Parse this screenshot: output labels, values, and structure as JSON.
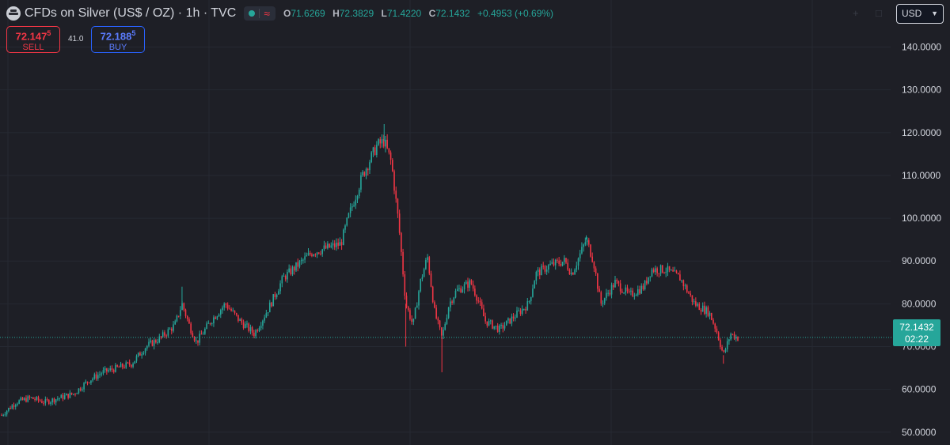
{
  "header": {
    "symbol": "CFDs on Silver (US$ / OZ) · 1h · TVC",
    "ohlc": {
      "open_label": "O",
      "open": "71.6269",
      "high_label": "H",
      "high": "72.3829",
      "low_label": "L",
      "low": "71.4220",
      "close_label": "C",
      "close": "72.1432",
      "change": "+0.4953 (+0.69%)"
    },
    "icons": [
      "silver-logo-icon",
      "market-open-dot-icon",
      "wave-icon"
    ]
  },
  "trade": {
    "sell_price_main": "72.147",
    "sell_price_sup": "5",
    "sell_label": "SELL",
    "spread": "41.0",
    "buy_price_main": "72.188",
    "buy_price_sup": "5",
    "buy_label": "BUY"
  },
  "currency": {
    "value": "USD"
  },
  "last_price": {
    "value": "72.1432",
    "countdown": "02:22"
  },
  "colors": {
    "background": "#1e1f26",
    "up": "#26a69a",
    "down": "#f23645",
    "buy": "#2962ff",
    "grid": "#262932",
    "text": "#d1d4dc"
  },
  "chart_data": {
    "type": "candlestick",
    "timeframe": "1h",
    "ylim": [
      47,
      151
    ],
    "y_ticks": [
      "50.0000",
      "60.0000",
      "70.0000",
      "80.0000",
      "90.0000",
      "100.0000",
      "110.0000",
      "120.0000",
      "130.0000",
      "140.0000"
    ],
    "y_tick_values": [
      50,
      60,
      70,
      80,
      90,
      100,
      110,
      120,
      130,
      140
    ],
    "last_price": 72.1432,
    "price_path": [
      [
        0,
        54
      ],
      [
        2,
        57
      ],
      [
        4,
        58
      ],
      [
        6,
        57
      ],
      [
        8,
        58
      ],
      [
        10,
        59
      ],
      [
        12,
        62
      ],
      [
        14,
        64
      ],
      [
        16,
        65
      ],
      [
        18,
        66
      ],
      [
        20,
        70
      ],
      [
        22,
        72
      ],
      [
        24,
        75
      ],
      [
        25,
        80
      ],
      [
        26,
        75
      ],
      [
        27,
        71
      ],
      [
        29,
        76
      ],
      [
        31,
        80
      ],
      [
        33,
        76
      ],
      [
        35,
        73
      ],
      [
        37,
        79
      ],
      [
        39,
        86
      ],
      [
        41,
        89
      ],
      [
        43,
        92
      ],
      [
        45,
        93
      ],
      [
        47,
        94
      ],
      [
        48,
        100
      ],
      [
        50,
        110
      ],
      [
        52,
        117
      ],
      [
        53,
        118
      ],
      [
        54,
        113
      ],
      [
        55,
        99
      ],
      [
        56,
        80
      ],
      [
        57,
        75
      ],
      [
        58,
        85
      ],
      [
        59,
        91
      ],
      [
        60,
        78
      ],
      [
        61,
        72
      ],
      [
        62,
        80
      ],
      [
        63,
        83
      ],
      [
        65,
        85
      ],
      [
        66,
        81
      ],
      [
        67,
        76
      ],
      [
        69,
        74
      ],
      [
        71,
        77
      ],
      [
        73,
        80
      ],
      [
        74,
        87
      ],
      [
        76,
        89
      ],
      [
        78,
        90
      ],
      [
        79,
        87
      ],
      [
        81,
        95
      ],
      [
        82,
        90
      ],
      [
        83,
        80
      ],
      [
        85,
        85
      ],
      [
        87,
        82
      ],
      [
        89,
        84
      ],
      [
        90,
        88
      ],
      [
        92,
        88
      ],
      [
        94,
        86
      ],
      [
        96,
        80
      ],
      [
        98,
        78
      ],
      [
        99,
        74
      ],
      [
        100,
        68
      ],
      [
        101,
        73
      ],
      [
        102,
        72
      ]
    ],
    "price_spikes": [
      [
        25,
        84
      ],
      [
        53,
        122
      ],
      [
        56,
        70
      ],
      [
        61,
        64
      ],
      [
        81,
        96
      ],
      [
        100,
        66
      ]
    ]
  }
}
